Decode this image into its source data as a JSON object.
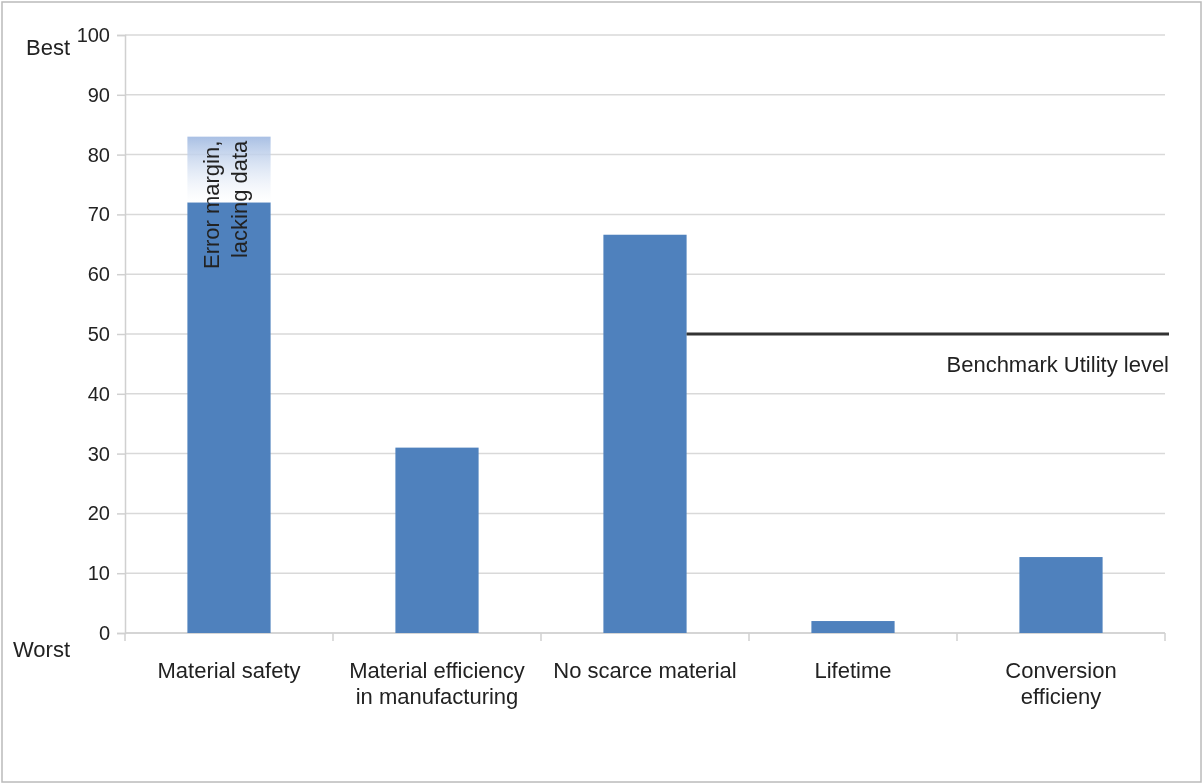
{
  "chart_data": {
    "type": "bar",
    "stacked": true,
    "categories": [
      "Material safety",
      "Material efficiency in manufacturing",
      "No scarce material",
      "Lifetime",
      "Conversion efficieny"
    ],
    "series": [
      {
        "color": "#4f81bd",
        "values": [
          72,
          31,
          66.6,
          2,
          12.7
        ]
      },
      {
        "color": "#a9c0e4",
        "values": [
          11,
          null,
          null,
          null,
          null
        ]
      }
    ],
    "ylim": [
      0,
      100
    ],
    "yticks": [
      0,
      10,
      20,
      30,
      40,
      50,
      60,
      70,
      80,
      90,
      100
    ],
    "grid": "y",
    "ref_lines": [
      {
        "axis": "y",
        "value": 50,
        "label": "Benchmark Utility level",
        "color": "#333333"
      }
    ],
    "annotations": [
      "Best",
      "Worst",
      "Error margin, lacking data"
    ]
  }
}
